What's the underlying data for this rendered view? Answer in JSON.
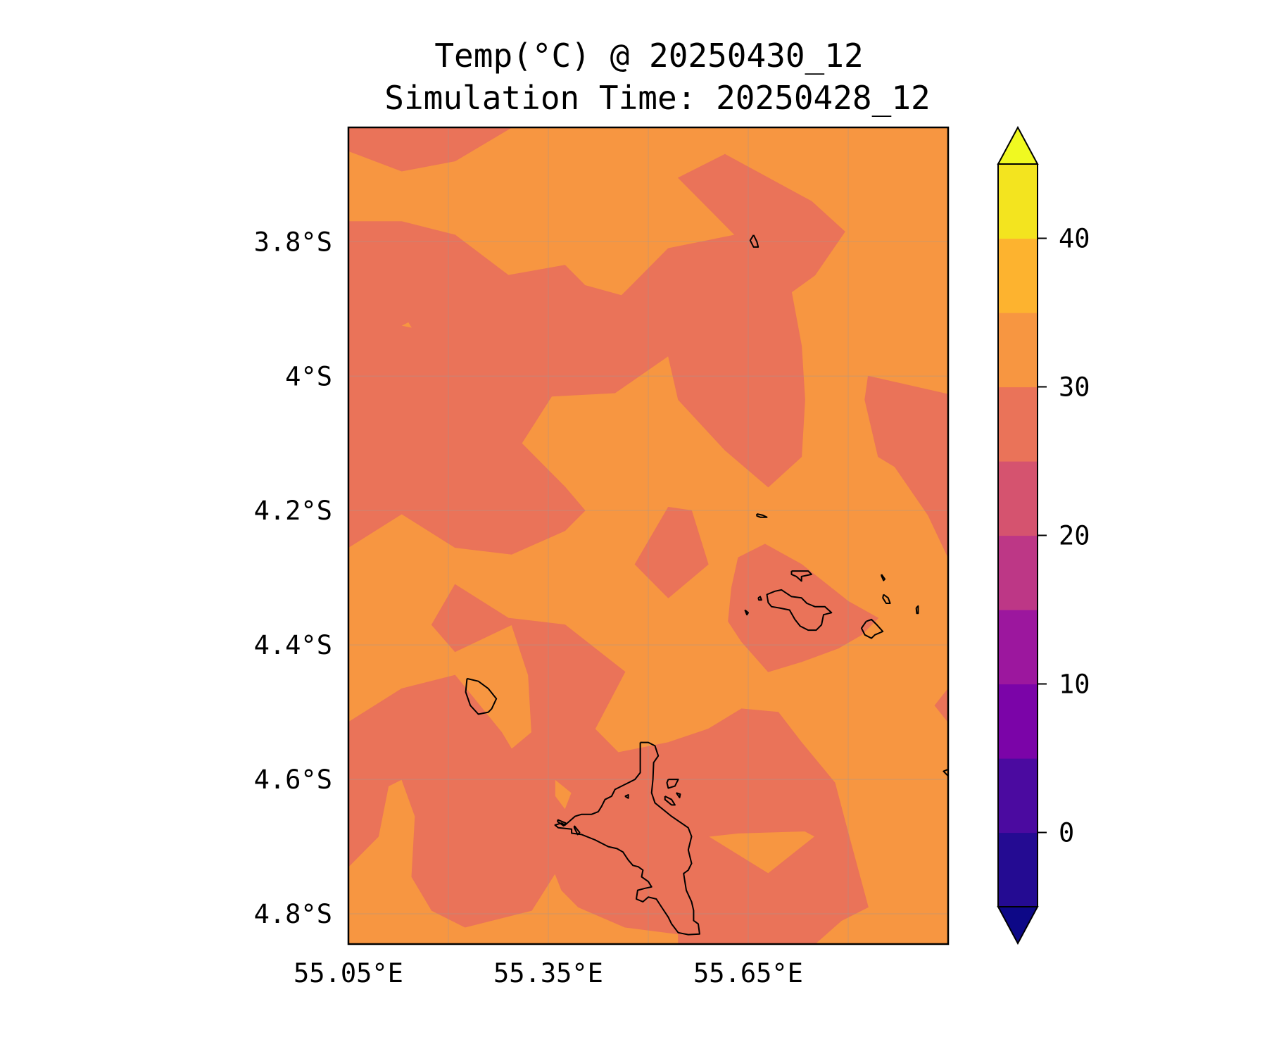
{
  "chart_data": {
    "type": "heatmap",
    "title": "Temp(°C) @ 20250430_12",
    "subtitle": "Simulation Time: 20250428_12",
    "xlabel": "",
    "ylabel": "",
    "xlim": [
      55.05,
      55.95
    ],
    "ylim": [
      -4.845,
      -3.63
    ],
    "x_ticks": [
      {
        "value": 55.05,
        "label": "55.05°E"
      },
      {
        "value": 55.35,
        "label": "55.35°E"
      },
      {
        "value": 55.65,
        "label": "55.65°E"
      }
    ],
    "y_ticks": [
      {
        "value": -3.8,
        "label": "3.8°S"
      },
      {
        "value": -4.0,
        "label": "4°S"
      },
      {
        "value": -4.2,
        "label": "4.2°S"
      },
      {
        "value": -4.4,
        "label": "4.4°S"
      },
      {
        "value": -4.6,
        "label": "4.6°S"
      },
      {
        "value": -4.8,
        "label": "4.8°S"
      }
    ],
    "grid": true,
    "colorbar": {
      "levels": [
        -5,
        0,
        5,
        10,
        15,
        20,
        25,
        30,
        35,
        40,
        45
      ],
      "colors": [
        "#240b92",
        "#4b0aa0",
        "#7b04a8",
        "#9c179e",
        "#bd3786",
        "#d5536f",
        "#ea7359",
        "#f79641",
        "#fdb32f",
        "#f3e41f"
      ],
      "under_color": "#0d0887",
      "over_color": "#f0f921",
      "extend": "both",
      "ticks": [
        {
          "value": 0,
          "label": "0"
        },
        {
          "value": 10,
          "label": "10"
        },
        {
          "value": 20,
          "label": "20"
        },
        {
          "value": 30,
          "label": "30"
        },
        {
          "value": 40,
          "label": "40"
        }
      ]
    },
    "field": {
      "background_band": "30–35",
      "background_color": "#f79641",
      "region_band": "25–30",
      "region_color": "#ea7359",
      "regions_lonlat": [
        [
          [
            55.05,
            -3.63
          ],
          [
            55.295,
            -3.63
          ],
          [
            55.21,
            -3.68
          ],
          [
            55.13,
            -3.695
          ],
          [
            55.05,
            -3.665
          ]
        ],
        [
          [
            55.05,
            -3.77
          ],
          [
            55.13,
            -3.77
          ],
          [
            55.21,
            -3.79
          ],
          [
            55.29,
            -3.85
          ],
          [
            55.375,
            -3.835
          ],
          [
            55.405,
            -3.865
          ],
          [
            55.46,
            -3.88
          ],
          [
            55.53,
            -3.81
          ],
          [
            55.63,
            -3.79
          ],
          [
            55.545,
            -3.705
          ],
          [
            55.615,
            -3.67
          ],
          [
            55.745,
            -3.74
          ],
          [
            55.795,
            -3.785
          ],
          [
            55.75,
            -3.85
          ],
          [
            55.715,
            -3.875
          ],
          [
            55.73,
            -3.955
          ],
          [
            55.735,
            -4.035
          ],
          [
            55.73,
            -4.12
          ],
          [
            55.68,
            -4.165
          ],
          [
            55.615,
            -4.11
          ],
          [
            55.545,
            -4.035
          ],
          [
            55.53,
            -3.97
          ],
          [
            55.45,
            -4.025
          ],
          [
            55.355,
            -4.03
          ],
          [
            55.31,
            -4.1
          ],
          [
            55.375,
            -4.165
          ],
          [
            55.405,
            -4.2
          ],
          [
            55.375,
            -4.23
          ],
          [
            55.295,
            -4.265
          ],
          [
            55.21,
            -4.255
          ],
          [
            55.13,
            -4.205
          ],
          [
            55.05,
            -4.255
          ]
        ],
        [
          [
            55.83,
            -4.0
          ],
          [
            55.95,
            -4.027
          ],
          [
            55.95,
            -4.27
          ],
          [
            55.92,
            -4.207
          ],
          [
            55.87,
            -4.135
          ],
          [
            55.845,
            -4.12
          ],
          [
            55.825,
            -4.035
          ]
        ],
        [
          [
            55.53,
            -4.195
          ],
          [
            55.565,
            -4.2
          ],
          [
            55.59,
            -4.28
          ],
          [
            55.53,
            -4.33
          ],
          [
            55.48,
            -4.28
          ]
        ],
        [
          [
            55.675,
            -4.25
          ],
          [
            55.73,
            -4.28
          ],
          [
            55.8,
            -4.335
          ],
          [
            55.845,
            -4.36
          ],
          [
            55.82,
            -4.385
          ],
          [
            55.785,
            -4.405
          ],
          [
            55.73,
            -4.425
          ],
          [
            55.68,
            -4.44
          ],
          [
            55.64,
            -4.395
          ],
          [
            55.62,
            -4.365
          ],
          [
            55.625,
            -4.315
          ],
          [
            55.635,
            -4.27
          ]
        ],
        [
          [
            55.21,
            -4.31
          ],
          [
            55.29,
            -4.36
          ],
          [
            55.375,
            -4.37
          ],
          [
            55.465,
            -4.44
          ],
          [
            55.42,
            -4.525
          ],
          [
            55.455,
            -4.56
          ],
          [
            55.53,
            -4.545
          ],
          [
            55.59,
            -4.525
          ],
          [
            55.64,
            -4.495
          ],
          [
            55.695,
            -4.5
          ],
          [
            55.73,
            -4.545
          ],
          [
            55.78,
            -4.605
          ],
          [
            55.8,
            -4.68
          ],
          [
            55.83,
            -4.79
          ],
          [
            55.79,
            -4.81
          ],
          [
            55.75,
            -4.845
          ],
          [
            55.545,
            -4.845
          ],
          [
            55.545,
            -4.83
          ],
          [
            55.465,
            -4.82
          ],
          [
            55.395,
            -4.79
          ],
          [
            55.37,
            -4.765
          ],
          [
            55.36,
            -4.74
          ],
          [
            55.325,
            -4.795
          ],
          [
            55.225,
            -4.82
          ],
          [
            55.175,
            -4.795
          ],
          [
            55.145,
            -4.745
          ],
          [
            55.15,
            -4.655
          ],
          [
            55.13,
            -4.6
          ],
          [
            55.11,
            -4.61
          ],
          [
            55.095,
            -4.685
          ],
          [
            55.05,
            -4.73
          ],
          [
            55.05,
            -4.515
          ],
          [
            55.13,
            -4.465
          ],
          [
            55.21,
            -4.445
          ],
          [
            55.28,
            -4.53
          ],
          [
            55.295,
            -4.555
          ],
          [
            55.325,
            -4.53
          ],
          [
            55.32,
            -4.445
          ],
          [
            55.295,
            -4.37
          ],
          [
            55.21,
            -4.41
          ],
          [
            55.175,
            -4.37
          ]
        ],
        [
          [
            55.93,
            -4.49
          ],
          [
            55.95,
            -4.465
          ],
          [
            55.95,
            -4.515
          ]
        ]
      ],
      "holes_lonlat": [
        [
          [
            55.36,
            -4.6
          ],
          [
            55.385,
            -4.62
          ],
          [
            55.375,
            -4.645
          ],
          [
            55.36,
            -4.625
          ]
        ],
        [
          [
            55.59,
            -4.685
          ],
          [
            55.635,
            -4.68
          ],
          [
            55.735,
            -4.677
          ],
          [
            55.75,
            -4.685
          ],
          [
            55.68,
            -4.74
          ]
        ]
      ],
      "specks_lonlat": [
        [
          [
            55.13,
            -3.925
          ],
          [
            55.14,
            -3.92
          ],
          [
            55.145,
            -3.928
          ]
        ]
      ]
    },
    "coastlines_lonlat": [
      [
        [
          55.488,
          -4.545
        ],
        [
          55.5,
          -4.545
        ],
        [
          55.51,
          -4.55
        ],
        [
          55.515,
          -4.565
        ],
        [
          55.508,
          -4.575
        ],
        [
          55.507,
          -4.6
        ],
        [
          55.505,
          -4.62
        ],
        [
          55.51,
          -4.635
        ],
        [
          55.535,
          -4.655
        ],
        [
          55.56,
          -4.672
        ],
        [
          55.565,
          -4.685
        ],
        [
          55.56,
          -4.705
        ],
        [
          55.565,
          -4.725
        ],
        [
          55.56,
          -4.735
        ],
        [
          55.553,
          -4.74
        ],
        [
          55.557,
          -4.765
        ],
        [
          55.565,
          -4.782
        ],
        [
          55.568,
          -4.795
        ],
        [
          55.568,
          -4.81
        ],
        [
          55.575,
          -4.815
        ],
        [
          55.577,
          -4.83
        ],
        [
          55.56,
          -4.831
        ],
        [
          55.545,
          -4.828
        ],
        [
          55.535,
          -4.815
        ],
        [
          55.53,
          -4.805
        ],
        [
          55.52,
          -4.79
        ],
        [
          55.512,
          -4.778
        ],
        [
          55.5,
          -4.775
        ],
        [
          55.492,
          -4.782
        ],
        [
          55.482,
          -4.778
        ],
        [
          55.484,
          -4.765
        ],
        [
          55.495,
          -4.762
        ],
        [
          55.505,
          -4.76
        ],
        [
          55.5,
          -4.752
        ],
        [
          55.49,
          -4.745
        ],
        [
          55.492,
          -4.735
        ],
        [
          55.485,
          -4.73
        ],
        [
          55.477,
          -4.728
        ],
        [
          55.47,
          -4.72
        ],
        [
          55.462,
          -4.708
        ],
        [
          55.453,
          -4.703
        ],
        [
          55.44,
          -4.7
        ],
        [
          55.42,
          -4.69
        ],
        [
          55.4,
          -4.682
        ],
        [
          55.385,
          -4.68
        ],
        [
          55.385,
          -4.674
        ],
        [
          55.375,
          -4.673
        ],
        [
          55.365,
          -4.672
        ],
        [
          55.36,
          -4.668
        ],
        [
          55.37,
          -4.665
        ],
        [
          55.375,
          -4.668
        ],
        [
          55.382,
          -4.662
        ],
        [
          55.39,
          -4.655
        ],
        [
          55.4,
          -4.652
        ],
        [
          55.415,
          -4.652
        ],
        [
          55.425,
          -4.648
        ],
        [
          55.43,
          -4.64
        ],
        [
          55.435,
          -4.63
        ],
        [
          55.445,
          -4.625
        ],
        [
          55.45,
          -4.615
        ],
        [
          55.48,
          -4.6
        ],
        [
          55.488,
          -4.59
        ],
        [
          55.488,
          -4.57
        ],
        [
          55.488,
          -4.545
        ]
      ],
      [
        [
          55.228,
          -4.45
        ],
        [
          55.245,
          -4.454
        ],
        [
          55.26,
          -4.465
        ],
        [
          55.272,
          -4.48
        ],
        [
          55.265,
          -4.495
        ],
        [
          55.26,
          -4.5
        ],
        [
          55.245,
          -4.503
        ],
        [
          55.233,
          -4.49
        ],
        [
          55.226,
          -4.47
        ],
        [
          55.228,
          -4.45
        ]
      ],
      [
        [
          55.69,
          -4.32
        ],
        [
          55.7,
          -4.318
        ],
        [
          55.715,
          -4.328
        ],
        [
          55.73,
          -4.33
        ],
        [
          55.738,
          -4.338
        ],
        [
          55.75,
          -4.343
        ],
        [
          55.765,
          -4.343
        ],
        [
          55.775,
          -4.352
        ],
        [
          55.763,
          -4.355
        ],
        [
          55.76,
          -4.37
        ],
        [
          55.752,
          -4.378
        ],
        [
          55.74,
          -4.378
        ],
        [
          55.728,
          -4.372
        ],
        [
          55.72,
          -4.362
        ],
        [
          55.712,
          -4.348
        ],
        [
          55.697,
          -4.345
        ],
        [
          55.685,
          -4.343
        ],
        [
          55.68,
          -4.337
        ],
        [
          55.678,
          -4.325
        ],
        [
          55.69,
          -4.32
        ]
      ],
      [
        [
          55.715,
          -4.29
        ],
        [
          55.74,
          -4.29
        ],
        [
          55.745,
          -4.295
        ],
        [
          55.73,
          -4.298
        ],
        [
          55.73,
          -4.305
        ],
        [
          55.722,
          -4.298
        ],
        [
          55.715,
          -4.295
        ],
        [
          55.715,
          -4.29
        ]
      ],
      [
        [
          55.827,
          -4.365
        ],
        [
          55.835,
          -4.362
        ],
        [
          55.843,
          -4.37
        ],
        [
          55.852,
          -4.38
        ],
        [
          55.84,
          -4.385
        ],
        [
          55.835,
          -4.39
        ],
        [
          55.825,
          -4.385
        ],
        [
          55.82,
          -4.375
        ],
        [
          55.827,
          -4.365
        ]
      ],
      [
        [
          55.853,
          -4.325
        ],
        [
          55.86,
          -4.33
        ],
        [
          55.863,
          -4.338
        ],
        [
          55.857,
          -4.338
        ],
        [
          55.852,
          -4.33
        ],
        [
          55.853,
          -4.325
        ]
      ],
      [
        [
          55.85,
          -4.295
        ],
        [
          55.855,
          -4.302
        ],
        [
          55.853,
          -4.304
        ],
        [
          55.85,
          -4.297
        ],
        [
          55.85,
          -4.295
        ]
      ],
      [
        [
          55.902,
          -4.345
        ],
        [
          55.905,
          -4.342
        ],
        [
          55.905,
          -4.353
        ],
        [
          55.903,
          -4.353
        ],
        [
          55.902,
          -4.345
        ]
      ],
      [
        [
          55.663,
          -4.205
        ],
        [
          55.672,
          -4.207
        ],
        [
          55.678,
          -4.21
        ],
        [
          55.668,
          -4.21
        ],
        [
          55.663,
          -4.208
        ],
        [
          55.663,
          -4.205
        ]
      ],
      [
        [
          55.665,
          -4.33
        ],
        [
          55.668,
          -4.328
        ],
        [
          55.67,
          -4.333
        ],
        [
          55.666,
          -4.333
        ],
        [
          55.665,
          -4.33
        ]
      ],
      [
        [
          55.645,
          -4.348
        ],
        [
          55.65,
          -4.352
        ],
        [
          55.648,
          -4.355
        ],
        [
          55.645,
          -4.348
        ]
      ],
      [
        [
          55.658,
          -3.79
        ],
        [
          55.663,
          -3.8
        ],
        [
          55.665,
          -3.808
        ],
        [
          55.658,
          -3.808
        ],
        [
          55.653,
          -3.798
        ],
        [
          55.658,
          -3.79
        ]
      ],
      [
        [
          55.53,
          -4.6
        ],
        [
          55.545,
          -4.6
        ],
        [
          55.54,
          -4.61
        ],
        [
          55.53,
          -4.613
        ],
        [
          55.528,
          -4.605
        ],
        [
          55.53,
          -4.6
        ]
      ],
      [
        [
          55.525,
          -4.625
        ],
        [
          55.535,
          -4.63
        ],
        [
          55.54,
          -4.638
        ],
        [
          55.535,
          -4.638
        ],
        [
          55.525,
          -4.63
        ],
        [
          55.525,
          -4.625
        ]
      ],
      [
        [
          55.542,
          -4.62
        ],
        [
          55.548,
          -4.622
        ],
        [
          55.547,
          -4.627
        ],
        [
          55.542,
          -4.62
        ]
      ],
      [
        [
          55.465,
          -4.625
        ],
        [
          55.47,
          -4.623
        ],
        [
          55.47,
          -4.628
        ],
        [
          55.465,
          -4.625
        ]
      ],
      [
        [
          55.364,
          -4.66
        ],
        [
          55.376,
          -4.665
        ],
        [
          55.373,
          -4.669
        ],
        [
          55.364,
          -4.663
        ],
        [
          55.364,
          -4.66
        ]
      ],
      [
        [
          55.389,
          -4.669
        ],
        [
          55.397,
          -4.679
        ],
        [
          55.394,
          -4.682
        ],
        [
          55.389,
          -4.672
        ],
        [
          55.389,
          -4.669
        ]
      ],
      [
        [
          55.95,
          -4.585
        ],
        [
          55.943,
          -4.588
        ],
        [
          55.95,
          -4.595
        ]
      ]
    ]
  }
}
